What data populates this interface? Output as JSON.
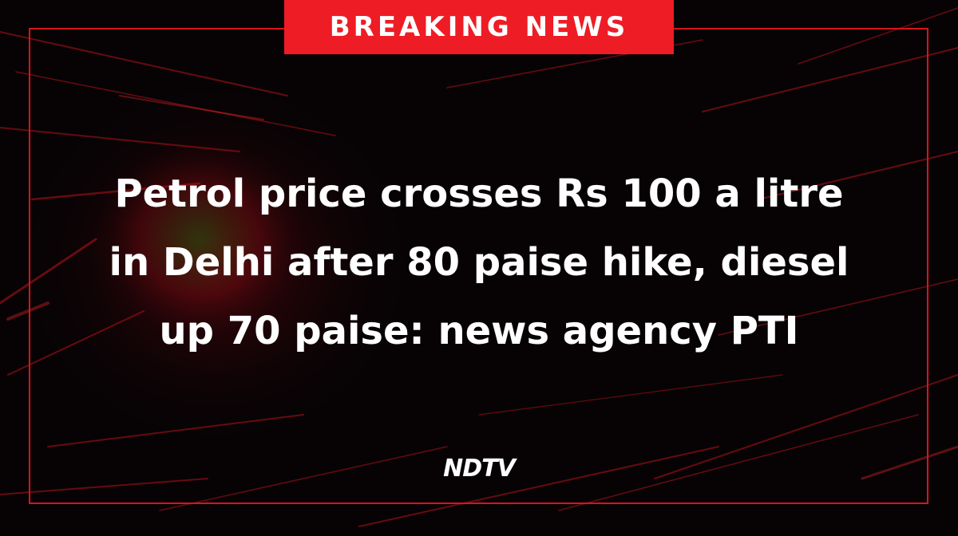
{
  "banner": "BREAKING NEWS",
  "headline": {
    "lines": [
      "Petrol price crosses Rs 100 a litre",
      "in Delhi after 80 paise hike, diesel",
      "up 70 paise: news agency PTI"
    ]
  },
  "logo": "NDTV"
}
